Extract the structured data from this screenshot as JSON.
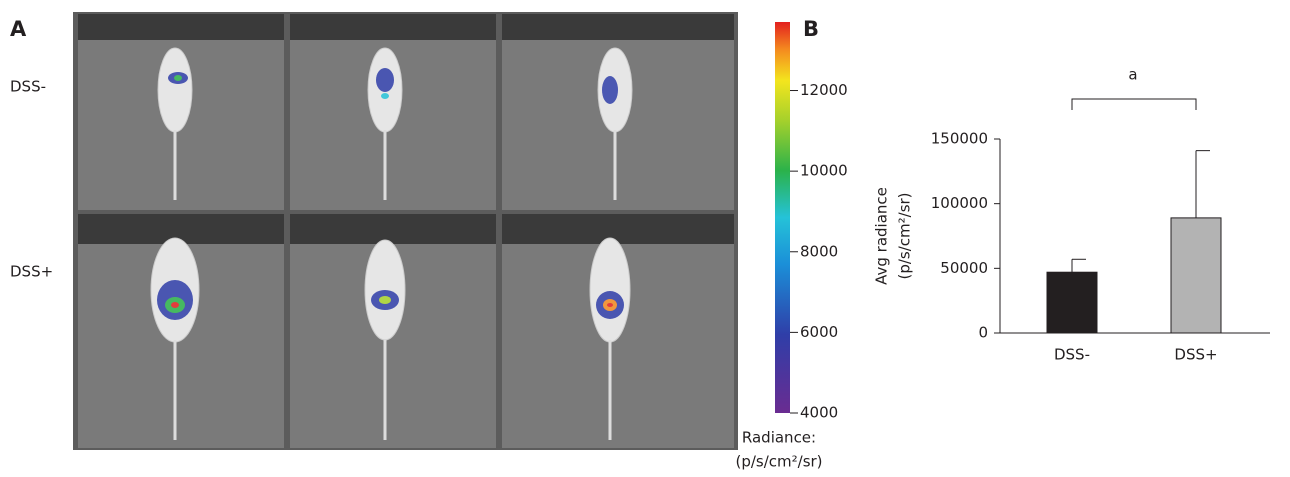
{
  "panel_a": {
    "label": "A",
    "rows": [
      "DSS-",
      "DSS+"
    ],
    "colorbar": {
      "clim": [
        4000,
        13700
      ],
      "ticks": [
        4000,
        6000,
        8000,
        10000,
        12000
      ],
      "title": "Radiance:",
      "unit": "(p/s/cm²/sr)"
    }
  },
  "chart_data": {
    "type": "bar",
    "panel_label": "B",
    "categories": [
      "DSS-",
      "DSS+"
    ],
    "values": [
      47000,
      89000
    ],
    "errors": [
      10000,
      52000
    ],
    "colors": [
      "#231f20",
      "#b3b3b3"
    ],
    "ylabel": [
      "Avg radiance",
      "(p/s/cm²/sr)"
    ],
    "ylim": [
      0,
      150000
    ],
    "yticks": [
      0,
      50000,
      100000,
      150000
    ],
    "annotation": "a"
  }
}
